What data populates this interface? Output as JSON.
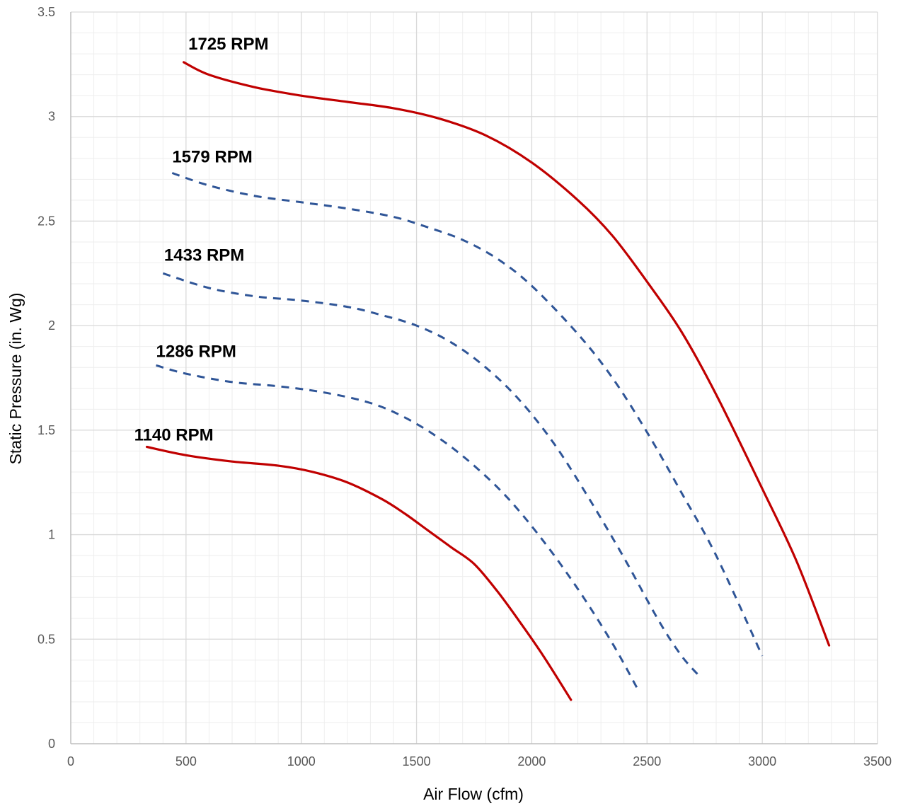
{
  "chart_data": {
    "type": "line",
    "xlabel": "Air Flow (cfm)",
    "ylabel": "Static Pressure (in. Wg)",
    "xlim": [
      0,
      3500
    ],
    "ylim": [
      0,
      3.5
    ],
    "x_ticks": [
      "0",
      "500",
      "1000",
      "1500",
      "2000",
      "2500",
      "3000",
      "3500"
    ],
    "y_ticks": [
      "0",
      "0.5",
      "1",
      "1.5",
      "2",
      "2.5",
      "3",
      "3.5"
    ],
    "grid": {
      "major": true,
      "minor": true
    },
    "legend": "none",
    "colors": {
      "solid": "#C00000",
      "dashed": "#2F5597",
      "grid_major": "#D9D9D9",
      "grid_minor": "#EEEEEE",
      "axis": "#BFBFBF"
    },
    "series": [
      {
        "name": "1725 RPM",
        "style": "solid",
        "x": [
          490,
          600,
          800,
          1000,
          1200,
          1400,
          1600,
          1800,
          2000,
          2200,
          2350,
          2500,
          2650,
          2800,
          3000,
          3150,
          3290
        ],
        "y": [
          3.26,
          3.2,
          3.14,
          3.1,
          3.07,
          3.04,
          2.99,
          2.91,
          2.78,
          2.6,
          2.43,
          2.21,
          1.97,
          1.67,
          1.22,
          0.87,
          0.47
        ]
      },
      {
        "name": "1579 RPM",
        "style": "dashed",
        "x": [
          440,
          600,
          800,
          1000,
          1200,
          1400,
          1550,
          1700,
          1850,
          2000,
          2200,
          2350,
          2500,
          2650,
          2800,
          3000
        ],
        "y": [
          2.73,
          2.67,
          2.62,
          2.59,
          2.56,
          2.52,
          2.47,
          2.41,
          2.32,
          2.19,
          1.96,
          1.75,
          1.49,
          1.2,
          0.9,
          0.42
        ]
      },
      {
        "name": "1433 RPM",
        "style": "dashed",
        "x": [
          400,
          600,
          800,
          1000,
          1200,
          1350,
          1500,
          1650,
          1800,
          1950,
          2100,
          2250,
          2400,
          2550,
          2650,
          2730
        ],
        "y": [
          2.25,
          2.18,
          2.14,
          2.12,
          2.09,
          2.05,
          2.0,
          1.92,
          1.8,
          1.64,
          1.43,
          1.17,
          0.89,
          0.59,
          0.42,
          0.32
        ]
      },
      {
        "name": "1286 RPM",
        "style": "dashed",
        "x": [
          370,
          500,
          700,
          900,
          1100,
          1300,
          1450,
          1600,
          1750,
          1900,
          2050,
          2200,
          2350,
          2460
        ],
        "y": [
          1.81,
          1.77,
          1.73,
          1.71,
          1.68,
          1.63,
          1.56,
          1.46,
          1.33,
          1.17,
          0.97,
          0.74,
          0.48,
          0.26
        ]
      },
      {
        "name": "1140 RPM",
        "style": "solid",
        "x": [
          330,
          500,
          700,
          900,
          1050,
          1200,
          1350,
          1450,
          1550,
          1650,
          1750,
          1850,
          1950,
          2050,
          2170
        ],
        "y": [
          1.42,
          1.38,
          1.35,
          1.33,
          1.3,
          1.25,
          1.17,
          1.1,
          1.02,
          0.94,
          0.86,
          0.73,
          0.58,
          0.42,
          0.21
        ]
      }
    ],
    "labels": [
      {
        "text": "1725 RPM",
        "x": 510,
        "y": 3.32
      },
      {
        "text": "1579 RPM",
        "x": 440,
        "y": 2.78
      },
      {
        "text": "1433 RPM",
        "x": 405,
        "y": 2.31
      },
      {
        "text": "1286 RPM",
        "x": 370,
        "y": 1.85
      },
      {
        "text": "1140 RPM",
        "x": 275,
        "y": 1.45
      }
    ]
  }
}
